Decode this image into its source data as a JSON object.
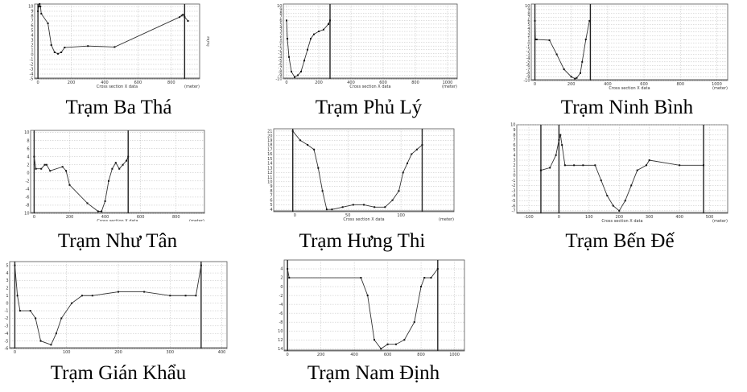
{
  "chart_data": [
    {
      "type": "line",
      "caption": "Trạm Ba Thá",
      "xlabel": "Cross section X data",
      "xunit": "(meter)",
      "xticks": [
        0,
        200,
        400,
        600,
        800
      ],
      "yticks": [
        -5,
        -4,
        -3,
        -2,
        -1,
        0,
        1,
        2,
        3,
        4,
        5,
        6,
        7,
        8,
        9,
        10
      ],
      "xlim": [
        -20,
        970
      ],
      "ylim": [
        -5,
        10.5
      ],
      "right_axis_label": "H(m)",
      "series": [
        {
          "x": [
            0,
            5,
            10,
            15,
            20,
            60,
            80,
            100,
            120,
            140,
            160,
            300,
            460,
            850,
            862,
            870,
            880,
            900
          ],
          "y": [
            9,
            10,
            10.5,
            10,
            8.5,
            6.5,
            2,
            0.5,
            0.2,
            0.5,
            1.5,
            1.8,
            1.6,
            7.8,
            8.1,
            8.3,
            7.8,
            7
          ]
        }
      ],
      "vlines": [
        0,
        880
      ]
    },
    {
      "type": "line",
      "caption": "Trạm Phủ Lý",
      "xlabel": "Cross section X data",
      "xunit": "(meter)",
      "xticks": [
        0,
        200,
        400,
        600,
        800,
        1000
      ],
      "yticks": [
        -10,
        -9,
        -8,
        -7,
        -6,
        -5,
        -4,
        -3,
        -2,
        -1,
        0,
        1,
        2,
        3,
        4,
        5,
        6,
        7,
        8,
        9,
        10
      ],
      "xlim": [
        -20,
        1060
      ],
      "ylim": [
        -10,
        10.5
      ],
      "series": [
        {
          "x": [
            0,
            5,
            15,
            30,
            50,
            70,
            90,
            110,
            130,
            150,
            170,
            200,
            230,
            260,
            270
          ],
          "y": [
            6,
            1,
            -4,
            -8,
            -9.5,
            -9,
            -8,
            -5,
            -2,
            1,
            2.2,
            3,
            3.5,
            5,
            6
          ]
        }
      ],
      "vlines": [
        270
      ]
    },
    {
      "type": "line",
      "caption": "Trạm Ninh Bình",
      "xlabel": "Cross section X data",
      "xunit": "(meter)",
      "xticks": [
        0,
        200,
        400,
        600,
        800,
        1000
      ],
      "yticks": [
        -10,
        -9,
        -8,
        -7,
        -6,
        -5,
        -4,
        -3,
        -2,
        -1,
        0,
        1,
        2,
        3,
        4,
        5,
        6,
        7,
        8,
        9,
        10
      ],
      "xlim": [
        -20,
        1060
      ],
      "ylim": [
        -10,
        10.5
      ],
      "series": [
        {
          "x": [
            0,
            3,
            10,
            80,
            120,
            160,
            200,
            220,
            230,
            250,
            260,
            280,
            300
          ],
          "y": [
            6,
            1,
            1,
            0.8,
            -3,
            -7,
            -9,
            -9.5,
            -9.3,
            -8,
            -5,
            1,
            6
          ]
        }
      ],
      "vlines": [
        0,
        305
      ]
    },
    {
      "type": "line",
      "caption": "Trạm Như Tân",
      "xlabel": "Cross section X data",
      "xunit": "(meter)",
      "xticks": [
        0,
        200,
        400,
        600,
        800
      ],
      "yticks": [
        -10,
        -8,
        -6,
        -4,
        -2,
        0,
        2,
        4,
        6,
        8,
        10
      ],
      "xlim": [
        -20,
        960
      ],
      "ylim": [
        -10,
        10.5
      ],
      "series": [
        {
          "x": [
            0,
            10,
            40,
            60,
            70,
            90,
            160,
            180,
            200,
            300,
            360,
            380,
            400,
            420,
            440,
            460,
            480,
            500,
            520,
            530
          ],
          "y": [
            4,
            1,
            1,
            2,
            2,
            0.5,
            1.5,
            0.5,
            -3,
            -7.5,
            -9.5,
            -9.5,
            -7,
            -2,
            1,
            2.5,
            1,
            2,
            3,
            4
          ]
        }
      ],
      "vlines": [
        0,
        530
      ]
    },
    {
      "type": "line",
      "caption": "Trạm Hưng Thi",
      "xlabel": "Cross section X data",
      "xunit": "(meter)",
      "xticks": [
        0,
        50,
        100
      ],
      "yticks": [
        4,
        5,
        6,
        7,
        8,
        9,
        10,
        11,
        12,
        13,
        14,
        15,
        16,
        17,
        18,
        19,
        20,
        21
      ],
      "xlim": [
        -20,
        150
      ],
      "ylim": [
        3.5,
        21.5
      ],
      "series": [
        {
          "x": [
            -2,
            5,
            12,
            18,
            22,
            26,
            30,
            35,
            45,
            55,
            65,
            75,
            85,
            92,
            98,
            102,
            106,
            110,
            115,
            120
          ],
          "y": [
            21,
            19,
            18,
            17,
            13,
            8,
            4,
            4,
            4.5,
            5,
            5,
            4.5,
            4.5,
            6,
            8,
            12,
            14,
            16,
            17,
            18
          ]
        }
      ],
      "vlines": [
        -2,
        120
      ]
    },
    {
      "type": "line",
      "caption": "Trạm Bến Đế",
      "xlabel": "Cross section X data",
      "xunit": "(meter)",
      "xticks": [
        -100,
        0,
        100,
        200,
        300,
        400,
        500
      ],
      "yticks": [
        -7,
        -6,
        -5,
        -4,
        -3,
        -2,
        -1,
        0,
        1,
        2,
        3,
        4,
        5,
        6,
        7,
        8,
        9,
        10
      ],
      "xlim": [
        -140,
        560
      ],
      "ylim": [
        -7.5,
        10
      ],
      "series": [
        {
          "x": [
            -60,
            -30,
            -10,
            0,
            5,
            10,
            20,
            50,
            80,
            120,
            140,
            160,
            180,
            200,
            220,
            240,
            260,
            290,
            300,
            400,
            480
          ],
          "y": [
            1,
            1.5,
            4,
            7,
            8,
            6,
            2,
            2,
            2,
            2,
            -1,
            -4,
            -6,
            -7,
            -5,
            -2,
            1,
            2,
            3,
            2,
            2
          ]
        }
      ],
      "vlines": [
        -60,
        0,
        480
      ]
    },
    {
      "type": "line",
      "caption": "Trạm Gián Khẩu",
      "xlabel": "",
      "xunit": "",
      "xticks": [
        0,
        100,
        200,
        300,
        400
      ],
      "yticks": [
        -6,
        -5,
        -4,
        -3,
        -2,
        -1,
        0,
        1,
        2,
        3,
        4,
        5
      ],
      "xlim": [
        -10,
        410
      ],
      "ylim": [
        -6,
        5.5
      ],
      "series": [
        {
          "x": [
            0,
            5,
            10,
            30,
            40,
            50,
            70,
            80,
            90,
            110,
            130,
            150,
            200,
            250,
            300,
            330,
            350,
            360
          ],
          "y": [
            5,
            1,
            -1,
            -1,
            -2,
            -5,
            -5.5,
            -4,
            -2,
            0,
            1,
            1,
            1.5,
            1.5,
            1,
            1,
            1,
            5
          ]
        }
      ],
      "vlines": [
        0,
        360
      ]
    },
    {
      "type": "line",
      "caption": "Trạm Nam Định",
      "xlabel": "",
      "xunit": "",
      "xticks": [
        0,
        200,
        400,
        600,
        800,
        1000
      ],
      "yticks": [
        -14,
        -12,
        -10,
        -8,
        -6,
        -4,
        -2,
        0,
        2,
        4
      ],
      "xlim": [
        -20,
        1060
      ],
      "ylim": [
        -14.5,
        6
      ],
      "series": [
        {
          "x": [
            0,
            10,
            440,
            480,
            520,
            560,
            600,
            650,
            700,
            760,
            800,
            820,
            860,
            900
          ],
          "y": [
            4,
            2,
            2,
            -2,
            -12,
            -14,
            -13,
            -13,
            -12,
            -8,
            0,
            2,
            2,
            4
          ]
        }
      ],
      "vlines": [
        0,
        900
      ]
    }
  ]
}
